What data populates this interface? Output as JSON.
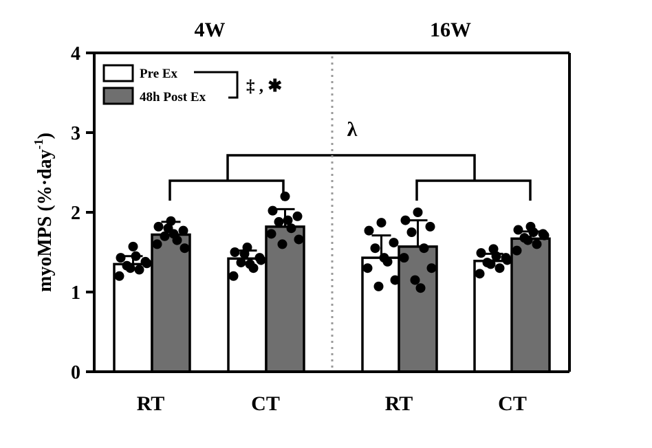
{
  "chart_data": {
    "type": "bar",
    "ylabel": "myoMPS (%·day",
    "ylabel_sup": "-1",
    "ylabel_close": ")",
    "ylim": [
      0,
      4
    ],
    "yticks": [
      "0",
      "1",
      "2",
      "3",
      "4"
    ],
    "panels": [
      "4W",
      "16W"
    ],
    "categories": [
      "RT",
      "CT",
      "RT",
      "CT"
    ],
    "series": [
      {
        "name": "Pre Ex",
        "color": "#ffffff",
        "means": [
          1.35,
          1.42,
          1.43,
          1.39
        ],
        "errors": [
          0.1,
          0.1,
          0.28,
          0.09
        ]
      },
      {
        "name": "48h Post Ex",
        "color": "#6f6f6f",
        "means": [
          1.72,
          1.82,
          1.57,
          1.67
        ],
        "errors": [
          0.16,
          0.22,
          0.33,
          0.09
        ]
      }
    ],
    "points": [
      [
        [
          1.57,
          1.43,
          1.38,
          1.33,
          1.28,
          1.2,
          1.36,
          1.3,
          1.45
        ],
        [
          1.89,
          1.82,
          1.77,
          1.7,
          1.65,
          1.6,
          1.55,
          1.8,
          1.73
        ]
      ],
      [
        [
          1.56,
          1.5,
          1.43,
          1.37,
          1.3,
          1.2,
          1.4,
          1.48,
          1.35
        ],
        [
          2.2,
          2.02,
          1.95,
          1.88,
          1.8,
          1.73,
          1.66,
          1.6,
          1.9
        ]
      ],
      [
        [
          1.87,
          1.77,
          1.62,
          1.55,
          1.38,
          1.3,
          1.15,
          1.07,
          1.43
        ],
        [
          2.0,
          1.9,
          1.82,
          1.75,
          1.55,
          1.43,
          1.3,
          1.15,
          1.05
        ]
      ],
      [
        [
          1.54,
          1.49,
          1.43,
          1.37,
          1.3,
          1.23,
          1.4,
          1.35,
          1.45
        ],
        [
          1.82,
          1.78,
          1.73,
          1.68,
          1.6,
          1.52,
          1.71,
          1.65,
          1.75
        ]
      ]
    ],
    "annotations": {
      "legend_sig": "‡ , ✱",
      "lambda": "λ"
    }
  }
}
